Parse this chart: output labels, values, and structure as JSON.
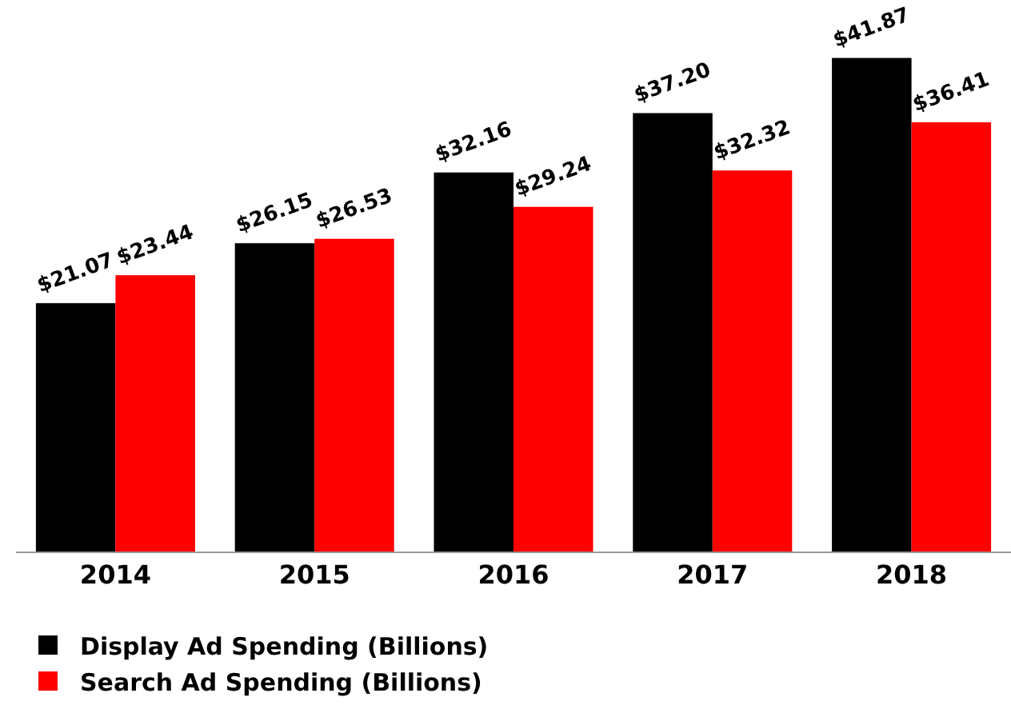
{
  "chart_data": {
    "type": "bar",
    "categories": [
      "2014",
      "2015",
      "2016",
      "2017",
      "2018"
    ],
    "series": [
      {
        "name": "Display Ad Spending (Billions)",
        "color": "#000000",
        "values": [
          21.07,
          26.15,
          32.16,
          37.2,
          41.87
        ],
        "value_labels": [
          "$21.07",
          "$26.15",
          "$32.16",
          "$37.20",
          "$41.87"
        ]
      },
      {
        "name": "Search Ad Spending (Billions)",
        "color": "#ff0000",
        "values": [
          23.44,
          26.53,
          29.24,
          32.32,
          36.41
        ],
        "value_labels": [
          "$23.44",
          "$26.53",
          "$29.24",
          "$32.32",
          "$36.41"
        ]
      }
    ],
    "legend": "bottom left"
  }
}
